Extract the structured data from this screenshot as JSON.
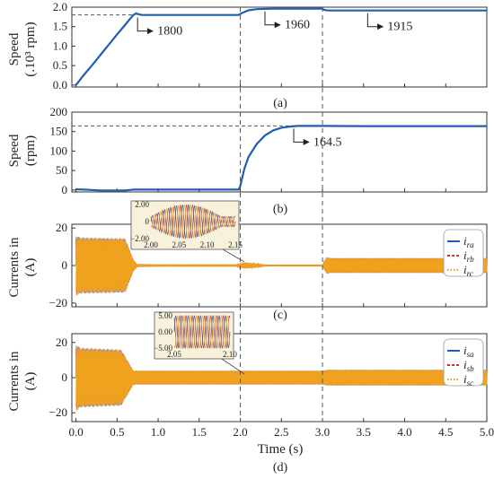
{
  "colors": {
    "blue": "#1f5fae",
    "red": "#c8342f",
    "orange": "#f0a21e",
    "axis": "#333333",
    "dash": "#555555",
    "inset_bg": "#f8f2dc"
  },
  "xlabel": "Time (s)",
  "x_ticks": [
    "0.0",
    "0.5",
    "1.0",
    "1.5",
    "2.0",
    "2.5",
    "3.0",
    "3.5",
    "4.0",
    "4.5",
    "5.0"
  ],
  "chart_data": [
    {
      "type": "line",
      "panel": "(a)",
      "ylabel_line1": "Speed",
      "ylabel_line2": "(.10³ rpm)",
      "xlim": [
        -0.05,
        5.0
      ],
      "ylim": [
        -0.05,
        2.0
      ],
      "y_ticks": [
        0.0,
        0.5,
        1.0,
        1.5,
        2.0
      ],
      "y_tick_labels": [
        "0.0",
        "0.5",
        "1.0",
        "1.5",
        "2.0"
      ],
      "series": [
        {
          "x": [
            0,
            0.1,
            0.2,
            0.3,
            0.4,
            0.5,
            0.6,
            0.65,
            0.7,
            0.73,
            0.76,
            0.8,
            1.0,
            1.5,
            1.98,
            2.02,
            2.1,
            2.2,
            2.4,
            2.6,
            3.0,
            3.02,
            3.05,
            3.1,
            3.5,
            4.0,
            5.0
          ],
          "y": [
            0,
            0.27,
            0.52,
            0.78,
            1.04,
            1.3,
            1.55,
            1.68,
            1.8,
            1.84,
            1.82,
            1.8,
            1.8,
            1.8,
            1.8,
            1.85,
            1.92,
            1.95,
            1.96,
            1.96,
            1.96,
            1.93,
            1.92,
            1.915,
            1.915,
            1.915,
            1.915
          ]
        }
      ],
      "annotations": [
        "1800",
        "1960",
        "1915"
      ],
      "annotation_x": [
        0.75,
        2.3,
        3.55
      ],
      "annotation_y": [
        1.8,
        1.96,
        1.915
      ],
      "ref_line_y": 1.8
    },
    {
      "type": "line",
      "panel": "(b)",
      "ylabel_line1": "Speed",
      "ylabel_line2": "(rpm)",
      "xlim": [
        -0.05,
        5.0
      ],
      "ylim": [
        -5,
        200
      ],
      "y_ticks": [
        0,
        50,
        100,
        150,
        200
      ],
      "y_tick_labels": [
        "0",
        "50",
        "100",
        "150",
        "200"
      ],
      "series": [
        {
          "x": [
            0,
            0.1,
            0.3,
            0.6,
            0.7,
            1.0,
            1.5,
            1.98,
            2.0,
            2.05,
            2.1,
            2.2,
            2.3,
            2.4,
            2.5,
            2.6,
            2.7,
            2.8,
            3.0,
            3.5,
            4.0,
            5.0
          ],
          "y": [
            2,
            1,
            -1,
            -1,
            1,
            1,
            1,
            1,
            10,
            55,
            85,
            118,
            140,
            153,
            160,
            163,
            164.5,
            164.5,
            164.5,
            164,
            164,
            164
          ]
        }
      ],
      "annotations": [
        "164.5"
      ],
      "annotation_x": [
        2.65
      ],
      "annotation_y": [
        164.5
      ],
      "ref_line_y": 164.5
    },
    {
      "type": "line",
      "panel": "(c)",
      "ylabel_line1": "Currents in",
      "ylabel_line2": "(A)",
      "xlim": [
        -0.05,
        5.0
      ],
      "ylim": [
        -22,
        22
      ],
      "y_ticks": [
        -20,
        0,
        20
      ],
      "y_tick_labels": [
        "−20",
        "0",
        "20"
      ],
      "legend": [
        "i_ra",
        "i_rb",
        "i_rc"
      ],
      "legend_labels": [
        {
          "base": "i",
          "sub": "ra"
        },
        {
          "base": "i",
          "sub": "rb"
        },
        {
          "base": "i",
          "sub": "rc"
        }
      ],
      "series_env": {
        "x": [
          0,
          0.05,
          0.6,
          0.7,
          0.75,
          1.0,
          1.95,
          2.0,
          2.05,
          2.15,
          2.3,
          3.0,
          3.05,
          3.1,
          5.0
        ],
        "amp": [
          16,
          15,
          14.5,
          3,
          0.5,
          0.4,
          0.4,
          1.2,
          1.5,
          1.2,
          0.3,
          0.3,
          4.5,
          4.0,
          4.0
        ]
      },
      "inset": {
        "x_ticks": [
          "2.00",
          "2.05",
          "2.10",
          "2.15"
        ],
        "y_ticks": [
          "2.00",
          "0",
          "−2.00"
        ]
      }
    },
    {
      "type": "line",
      "panel": "(d)",
      "ylabel_line1": "Currents in",
      "ylabel_line2": "(A)",
      "xlim": [
        -0.05,
        5.0
      ],
      "ylim": [
        -25,
        25
      ],
      "y_ticks": [
        -20,
        0,
        20
      ],
      "y_tick_labels": [
        "−20",
        "0",
        "20"
      ],
      "legend": [
        "i_sa",
        "i_sb",
        "i_sc"
      ],
      "legend_labels": [
        {
          "base": "i",
          "sub": "sa"
        },
        {
          "base": "i",
          "sub": "sb"
        },
        {
          "base": "i",
          "sub": "sc"
        }
      ],
      "series_env": {
        "x": [
          0,
          0.05,
          0.55,
          0.6,
          0.7,
          1.0,
          1.95,
          2.0,
          2.1,
          3.0,
          3.05,
          5.0
        ],
        "amp": [
          19,
          17,
          16,
          12,
          4,
          4,
          4,
          4,
          4,
          4,
          4.5,
          4.5
        ]
      },
      "inset": {
        "x_ticks": [
          "2.05",
          "2.10"
        ],
        "y_ticks": [
          "5.00",
          "0.00",
          "−5.00"
        ]
      }
    }
  ]
}
